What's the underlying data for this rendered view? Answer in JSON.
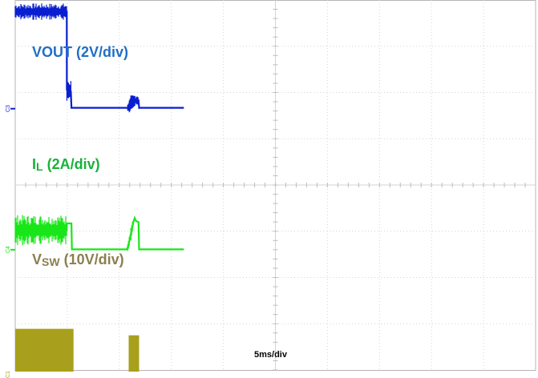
{
  "chart_data": {
    "type": "line",
    "title": "",
    "xlabel": "5ms/div",
    "time_per_div_ms": 5,
    "divisions": {
      "x": 10,
      "y": 8
    },
    "grid": true,
    "series": [
      {
        "name": "VOUT (2V/div)",
        "label_main": "VOUT (2V/div)",
        "label_sub": "",
        "label_tail": "",
        "channel": "C3",
        "color": "#0a1fd0",
        "label_color": "#1f6fc6",
        "offset_div": 2.35,
        "noise_div": 0.12,
        "points": [
          [
            0,
            5.35
          ],
          [
            4.95,
            5.35
          ],
          [
            4.96,
            1.05
          ],
          [
            5.35,
            0.95
          ],
          [
            5.4,
            0.05
          ],
          [
            10.8,
            0.05
          ],
          [
            11,
            0.15
          ],
          [
            11.1,
            0.35
          ],
          [
            11.6,
            0.45
          ],
          [
            11.85,
            0.45
          ],
          [
            11.9,
            0.05
          ],
          [
            16.2,
            0.05
          ]
        ],
        "fuzzy": [
          [
            0,
            4.95,
            0.12
          ],
          [
            4.96,
            5.4,
            0.18
          ],
          [
            10.8,
            11.9,
            0.1
          ]
        ]
      },
      {
        "name": "IL (2A/div)",
        "label_main": "I",
        "label_sub": "L",
        "label_tail": " (2A/div)",
        "channel": "C4",
        "color": "#19e619",
        "label_color": "#18b33a",
        "offset_div": 5.4,
        "noise_div": 0.18,
        "points": [
          [
            0,
            1.1
          ],
          [
            4.95,
            1.1
          ],
          [
            4.96,
            1.48
          ],
          [
            5.4,
            1.48
          ],
          [
            5.45,
            0.02
          ],
          [
            10.75,
            0.02
          ],
          [
            10.85,
            0.2
          ],
          [
            11.1,
            0.85
          ],
          [
            11.35,
            1.55
          ],
          [
            11.48,
            1.78
          ],
          [
            11.6,
            1.62
          ],
          [
            11.85,
            1.55
          ],
          [
            11.9,
            0.02
          ],
          [
            16.2,
            0.02
          ]
        ],
        "fuzzy": [
          [
            0,
            4.95,
            0.22
          ],
          [
            10.8,
            11.3,
            0.12
          ]
        ]
      },
      {
        "name": "VSW (10V/div)",
        "label_main": "V",
        "label_sub": "SW",
        "label_tail": " (10V/div)",
        "channel": "C1",
        "color": "#a8a01c",
        "label_color": "#8c7e50",
        "offset_div": 8.1,
        "noise_div": 0.05,
        "points": [
          [
            0,
            0
          ],
          [
            16.2,
            0
          ]
        ],
        "blocks": [
          [
            0,
            5.6,
            1.98
          ],
          [
            10.9,
            11.9,
            1.7
          ]
        ]
      }
    ]
  }
}
